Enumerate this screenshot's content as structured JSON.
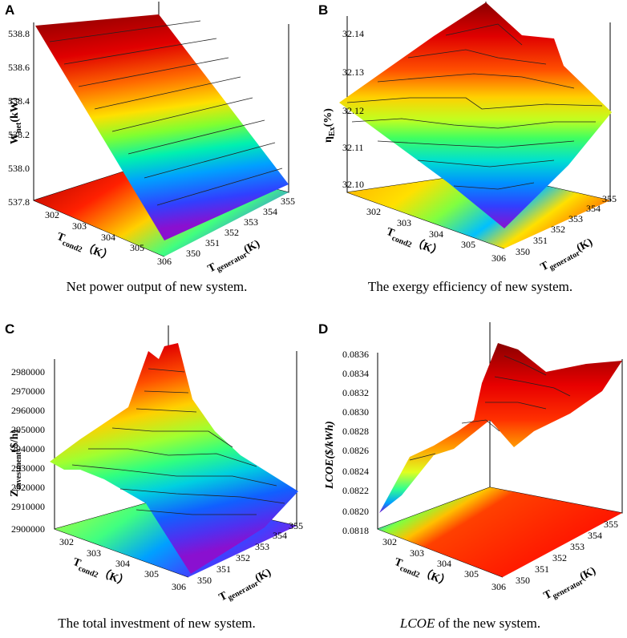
{
  "panels": [
    {
      "letter": "A",
      "caption": "Net power output of new system.",
      "caption_em": "",
      "chart_data": {
        "type": "surface3d",
        "title": "",
        "zlabel": "W",
        "zlabel_sub": "net",
        "zlabel_unit": "(kW)",
        "zticks": [
          "538.8",
          "538.6",
          "538.4",
          "538.2",
          "538.0",
          "537.8"
        ],
        "xlabel": "T",
        "xlabel_sub": "cond2",
        "xlabel_unit": "（K）",
        "xticks": [
          "302",
          "303",
          "304",
          "305",
          "306"
        ],
        "ylabel": "T",
        "ylabel_sub": "generator",
        "ylabel_unit": "(K)",
        "yticks": [
          "350",
          "351",
          "352",
          "353",
          "354",
          "355"
        ],
        "zlim": [
          537.8,
          538.8
        ]
      }
    },
    {
      "letter": "B",
      "caption": "The exergy efficiency of new system.",
      "caption_em": "",
      "chart_data": {
        "type": "surface3d",
        "zlabel": "η",
        "zlabel_sub": "Ex",
        "zlabel_unit": "(%)",
        "zticks": [
          "32.14",
          "32.13",
          "32.12",
          "32.11",
          "32.10"
        ],
        "xlabel": "T",
        "xlabel_sub": "cond2",
        "xlabel_unit": "（K）",
        "xticks": [
          "302",
          "303",
          "304",
          "305",
          "306"
        ],
        "ylabel": "T",
        "ylabel_sub": "generator",
        "ylabel_unit": "(K)",
        "yticks": [
          "350",
          "351",
          "352",
          "353",
          "354",
          "355"
        ],
        "zlim": [
          32.1,
          32.14
        ]
      }
    },
    {
      "letter": "C",
      "caption": "The total investment of new system.",
      "caption_em": "",
      "chart_data": {
        "type": "surface3d",
        "zlabel": "Z",
        "zlabel_sub": "investment",
        "zlabel_unit": "($/h)",
        "zticks": [
          "2980000",
          "2970000",
          "2960000",
          "2950000",
          "2940000",
          "2930000",
          "2920000",
          "2910000",
          "2900000"
        ],
        "xlabel": "T",
        "xlabel_sub": "cond2",
        "xlabel_unit": "（K）",
        "xticks": [
          "302",
          "303",
          "304",
          "305",
          "306"
        ],
        "ylabel": "T",
        "ylabel_sub": "generator",
        "ylabel_unit": "(K)",
        "yticks": [
          "350",
          "351",
          "352",
          "353",
          "354",
          "355"
        ],
        "zlim": [
          2900000,
          2980000
        ]
      }
    },
    {
      "letter": "D",
      "caption": " of the new system.",
      "caption_em": "LCOE",
      "chart_data": {
        "type": "surface3d",
        "zlabel": "LCOE($/kWh)",
        "zlabel_sub": "",
        "zlabel_unit": "",
        "zticks": [
          "0.0836",
          "0.0834",
          "0.0832",
          "0.0830",
          "0.0828",
          "0.0826",
          "0.0824",
          "0.0822",
          "0.0820",
          "0.0818"
        ],
        "xlabel": "T",
        "xlabel_sub": "cond2",
        "xlabel_unit": "（K）",
        "xticks": [
          "302",
          "303",
          "304",
          "305",
          "306"
        ],
        "ylabel": "T",
        "ylabel_sub": "generator",
        "ylabel_unit": "(K)",
        "yticks": [
          "350",
          "351",
          "352",
          "353",
          "354",
          "355"
        ],
        "zlim": [
          0.0818,
          0.0836
        ]
      }
    }
  ],
  "colors": {
    "rainbow": [
      "#7a0000",
      "#c80000",
      "#ff2a00",
      "#ff7a00",
      "#ffc000",
      "#f0ff20",
      "#90ff30",
      "#20ff80",
      "#00e0e0",
      "#00a0ff",
      "#2050ff",
      "#6020e0",
      "#8a10c8"
    ]
  }
}
